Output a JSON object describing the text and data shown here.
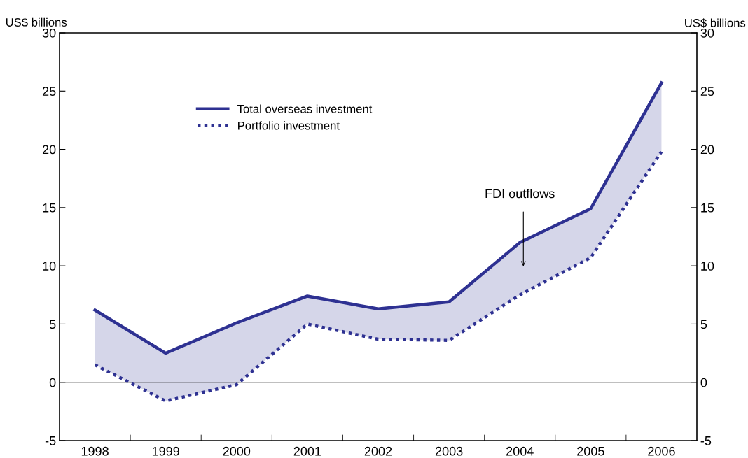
{
  "chart_data": {
    "type": "line",
    "categories": [
      "1998",
      "1999",
      "2000",
      "2001",
      "2002",
      "2003",
      "2004",
      "2005",
      "2006"
    ],
    "series": [
      {
        "name": "Total overseas investment",
        "color": "#2e3192",
        "line_style": "solid",
        "values": [
          6.2,
          2.5,
          5.1,
          7.4,
          6.3,
          6.9,
          12.0,
          14.9,
          25.7
        ],
        "lower": [
          1.5,
          -1.6,
          -0.2,
          5.0,
          3.7,
          3.6,
          7.5,
          10.7,
          19.8
        ],
        "upper": [
          6.2,
          2.5,
          5.1,
          7.4,
          6.3,
          6.9,
          12.0,
          14.9,
          25.7
        ]
      },
      {
        "name": "Portfolio investment",
        "color": "#2e3192",
        "line_style": "dotted",
        "values": [
          1.5,
          -1.6,
          -0.2,
          5.0,
          3.7,
          3.6,
          7.5,
          10.7,
          19.8
        ]
      }
    ],
    "ylabel": "US$ billions",
    "y2label": "US$ billions",
    "ylim": [
      -5,
      30
    ],
    "yticks": [
      -5,
      0,
      5,
      10,
      15,
      20,
      25,
      30
    ],
    "y2lim": [
      -5,
      30
    ],
    "y2ticks": [
      -5,
      0,
      5,
      10,
      15,
      20,
      25,
      30
    ],
    "ref_lines": [
      {
        "axis": "y",
        "value": 0,
        "color": "#000000"
      }
    ],
    "annotations": [
      "FDI outflows"
    ],
    "legend": "top left",
    "grid": false,
    "marker": "none"
  }
}
